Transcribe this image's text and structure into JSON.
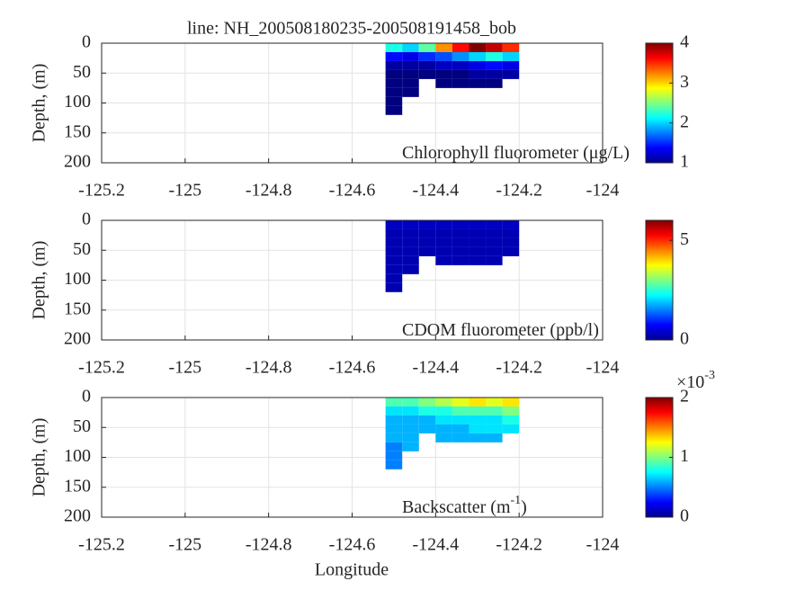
{
  "chart_data": [
    {
      "type": "section",
      "title": "line: NH_200508180235-200508191458_bob",
      "annotation": "Chlorophyll fluorometer (μg/L)",
      "ylabel": "Depth, (m)",
      "xlim": [
        -125.2,
        -124
      ],
      "xticks": [
        -125.2,
        -125,
        -124.8,
        -124.6,
        -124.4,
        -124.2,
        -124
      ],
      "ylim": [
        200,
        0
      ],
      "yticks": [
        0,
        50,
        100,
        150,
        200
      ],
      "grid": true,
      "colormap": "jet",
      "clim": [
        1,
        4
      ],
      "cticks": [
        1,
        2,
        3,
        4
      ],
      "x": [
        -124.5,
        -124.46,
        -124.42,
        -124.38,
        -124.34,
        -124.3,
        -124.26,
        -124.22
      ],
      "depths": [
        0,
        15,
        30,
        45,
        60,
        75,
        90,
        105
      ],
      "values": [
        [
          2.2,
          1.4,
          1.1,
          1.0,
          1.0,
          1.0,
          1.0,
          1.0
        ],
        [
          2.0,
          1.3,
          1.1,
          1.0,
          1.0,
          1.0,
          null,
          null
        ],
        [
          2.4,
          1.5,
          1.1,
          1.0,
          null,
          null,
          null,
          null
        ],
        [
          3.2,
          1.6,
          1.2,
          1.0,
          1.0,
          null,
          null,
          null
        ],
        [
          3.6,
          1.8,
          1.2,
          1.0,
          1.0,
          null,
          null,
          null
        ],
        [
          4.0,
          2.0,
          1.3,
          1.1,
          1.0,
          null,
          null,
          null
        ],
        [
          3.8,
          2.2,
          1.4,
          1.1,
          1.0,
          null,
          null,
          null
        ],
        [
          3.5,
          2.0,
          1.3,
          1.1,
          null,
          null,
          null,
          null
        ]
      ]
    },
    {
      "type": "section",
      "annotation": "CDOM fluorometer (ppb/l)",
      "ylabel": "Depth, (m)",
      "xlim": [
        -125.2,
        -124
      ],
      "xticks": [
        -125.2,
        -125,
        -124.8,
        -124.6,
        -124.4,
        -124.2,
        -124
      ],
      "ylim": [
        200,
        0
      ],
      "yticks": [
        0,
        50,
        100,
        150,
        200
      ],
      "grid": true,
      "colormap": "jet",
      "clim": [
        0,
        6
      ],
      "cticks": [
        0,
        5
      ],
      "x": [
        -124.5,
        -124.46,
        -124.42,
        -124.38,
        -124.34,
        -124.3,
        -124.26,
        -124.22
      ],
      "depths": [
        0,
        15,
        30,
        45,
        60,
        75,
        90,
        105
      ],
      "values": [
        [
          0.4,
          0.3,
          0.3,
          0.3,
          0.3,
          0.3,
          0.3,
          0.3
        ],
        [
          0.4,
          0.3,
          0.3,
          0.3,
          0.3,
          0.3,
          null,
          null
        ],
        [
          0.4,
          0.3,
          0.3,
          0.3,
          null,
          null,
          null,
          null
        ],
        [
          0.4,
          0.3,
          0.3,
          0.3,
          0.3,
          null,
          null,
          null
        ],
        [
          0.4,
          0.3,
          0.3,
          0.3,
          0.3,
          null,
          null,
          null
        ],
        [
          0.4,
          0.3,
          0.3,
          0.3,
          0.3,
          null,
          null,
          null
        ],
        [
          0.4,
          0.3,
          0.3,
          0.3,
          0.3,
          null,
          null,
          null
        ],
        [
          0.4,
          0.3,
          0.3,
          0.3,
          null,
          null,
          null,
          null
        ]
      ]
    },
    {
      "type": "section",
      "annotation": "Backscatter (m",
      "annotation_superscript": "-1",
      "annotation_end": ")",
      "ylabel": "Depth, (m)",
      "xlabel": "Longitude",
      "xlim": [
        -125.2,
        -124
      ],
      "xticks": [
        -125.2,
        -125,
        -124.8,
        -124.6,
        -124.4,
        -124.2,
        -124
      ],
      "ylim": [
        200,
        0
      ],
      "yticks": [
        0,
        50,
        100,
        150,
        200
      ],
      "grid": true,
      "colormap": "jet",
      "clim": [
        0,
        0.002
      ],
      "cticks": [
        0,
        {
          "value": 0.001,
          "label": "1"
        },
        {
          "value": 0.002,
          "label": "2"
        }
      ],
      "cscale_label": "×10",
      "cscale_exponent": "-3",
      "x": [
        -124.5,
        -124.46,
        -124.42,
        -124.38,
        -124.34,
        -124.3,
        -124.26,
        -124.22
      ],
      "depths": [
        0,
        15,
        30,
        45,
        60,
        75,
        90,
        105
      ],
      "values": [
        [
          0.0009,
          0.0007,
          0.0006,
          0.0006,
          0.0006,
          0.0005,
          0.0005,
          0.0005
        ],
        [
          0.0009,
          0.0007,
          0.0006,
          0.0006,
          0.0006,
          0.0006,
          null,
          null
        ],
        [
          0.001,
          0.0008,
          0.0006,
          0.0006,
          null,
          null,
          null,
          null
        ],
        [
          0.0011,
          0.0008,
          0.0007,
          0.0006,
          0.0006,
          null,
          null,
          null
        ],
        [
          0.0012,
          0.0009,
          0.0007,
          0.0006,
          0.0006,
          null,
          null,
          null
        ],
        [
          0.0013,
          0.0009,
          0.0007,
          0.0007,
          0.0006,
          null,
          null,
          null
        ],
        [
          0.0012,
          0.0009,
          0.0007,
          0.0007,
          0.0006,
          null,
          null,
          null
        ],
        [
          0.0013,
          0.001,
          0.0008,
          0.0007,
          null,
          null,
          null,
          null
        ]
      ]
    }
  ]
}
